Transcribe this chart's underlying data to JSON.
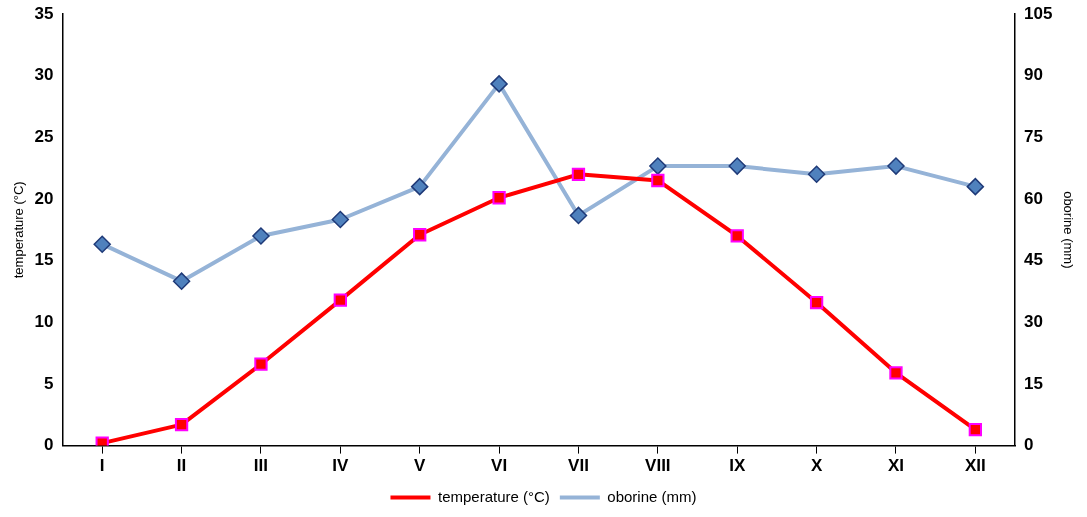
{
  "chart_data": {
    "type": "line",
    "categories": [
      "I",
      "II",
      "III",
      "IV",
      "V",
      "VI",
      "VII",
      "VIII",
      "IX",
      "X",
      "XI",
      "XII"
    ],
    "ylabel": "temperature (°C)",
    "y2label": "oborine (mm)",
    "ylim": [
      0,
      35
    ],
    "yticks": [
      0,
      5,
      10,
      15,
      20,
      25,
      30,
      35
    ],
    "y2lim": [
      0,
      105
    ],
    "y2ticks": [
      0,
      15,
      30,
      45,
      60,
      75,
      90,
      105
    ],
    "grid": false,
    "legend": "bottom",
    "line_style": "solid",
    "series": [
      {
        "name": "temperature (°C)",
        "color": "#ff0000",
        "marker": "square",
        "values": [
          0.2,
          1.7,
          6.6,
          11.8,
          17.1,
          20.1,
          22.0,
          21.5,
          17.0,
          11.6,
          5.9,
          1.3
        ]
      },
      {
        "name": "oborine (mm)",
        "color": "#95b3d7",
        "marker": "diamond",
        "axis": "y2",
        "values": [
          49,
          40,
          51,
          55,
          63,
          88,
          56,
          68,
          68,
          66,
          68,
          63
        ]
      }
    ]
  }
}
